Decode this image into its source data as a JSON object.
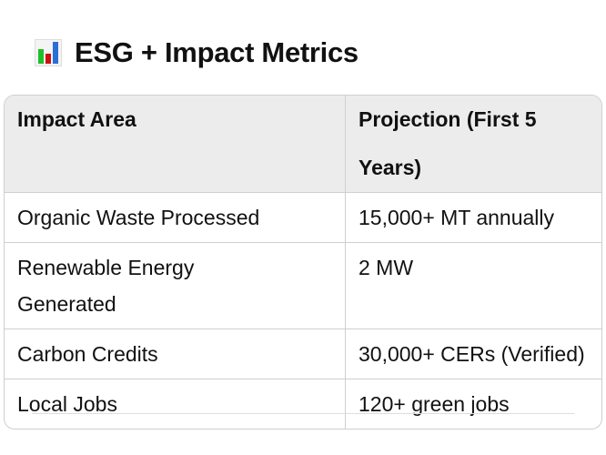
{
  "title": {
    "icon": "bar-chart-icon",
    "text": "ESG + Impact Metrics"
  },
  "table": {
    "headers": [
      "Impact Area",
      "Projection (First 5 Years)"
    ],
    "rows": [
      [
        "Organic Waste Processed",
        "15,000+ MT annually"
      ],
      [
        "Renewable Energy Generated",
        "2 MW"
      ],
      [
        "Carbon Credits",
        "30,000+ CERs (Verified)"
      ],
      [
        "Local Jobs",
        "120+ green jobs"
      ]
    ]
  }
}
